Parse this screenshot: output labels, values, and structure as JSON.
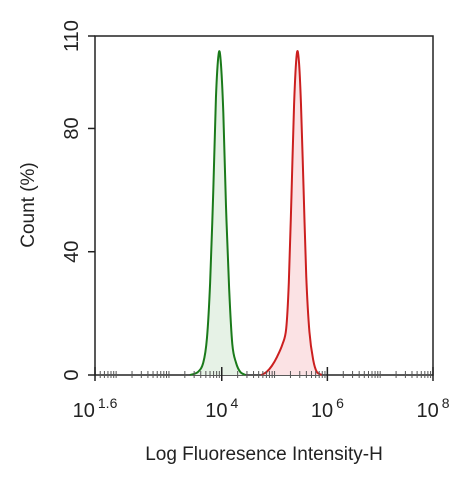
{
  "chart_data": {
    "type": "area",
    "title": "",
    "xlabel": "Log Fluoresence Intensity-H",
    "ylabel": "Count  (%)",
    "x_scale": "log10",
    "xlim": [
      1.6,
      8
    ],
    "ylim": [
      0,
      110
    ],
    "x_ticks": [
      {
        "value": 1.6,
        "base": "10",
        "exp": "1.6"
      },
      {
        "value": 4,
        "base": "10",
        "exp": "4"
      },
      {
        "value": 6,
        "base": "10",
        "exp": "6"
      },
      {
        "value": 8,
        "base": "10",
        "exp": "8"
      }
    ],
    "y_ticks": [
      0,
      40,
      80,
      110
    ],
    "grid": false,
    "legend": "none",
    "series": [
      {
        "color": "#1a7a1a",
        "fill": "#e6f2e6",
        "points": [
          [
            3.4,
            0
          ],
          [
            3.55,
            1
          ],
          [
            3.65,
            4
          ],
          [
            3.72,
            12
          ],
          [
            3.78,
            30
          ],
          [
            3.84,
            60
          ],
          [
            3.89,
            90
          ],
          [
            3.94,
            104
          ],
          [
            3.98,
            102
          ],
          [
            4.03,
            85
          ],
          [
            4.08,
            55
          ],
          [
            4.14,
            28
          ],
          [
            4.2,
            10
          ],
          [
            4.27,
            4
          ],
          [
            4.35,
            1
          ],
          [
            4.45,
            0
          ]
        ]
      },
      {
        "color": "#cc1f1f",
        "fill": "#fbe2e4",
        "points": [
          [
            4.75,
            0
          ],
          [
            4.85,
            1
          ],
          [
            4.95,
            3
          ],
          [
            5.05,
            6
          ],
          [
            5.15,
            10
          ],
          [
            5.22,
            15
          ],
          [
            5.27,
            30
          ],
          [
            5.32,
            58
          ],
          [
            5.37,
            88
          ],
          [
            5.42,
            104
          ],
          [
            5.46,
            102
          ],
          [
            5.5,
            88
          ],
          [
            5.55,
            60
          ],
          [
            5.6,
            32
          ],
          [
            5.66,
            14
          ],
          [
            5.73,
            5
          ],
          [
            5.8,
            1
          ],
          [
            5.9,
            0
          ]
        ]
      }
    ]
  }
}
